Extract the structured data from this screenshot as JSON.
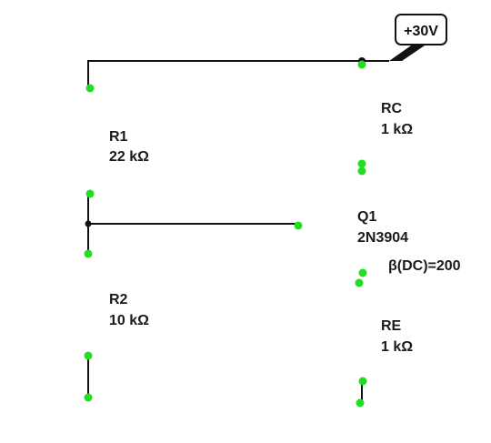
{
  "supply": {
    "label": "+30V"
  },
  "components": {
    "r1": {
      "ref": "R1",
      "value": "22 kΩ"
    },
    "r2": {
      "ref": "R2",
      "value": "10 kΩ"
    },
    "rc": {
      "ref": "RC",
      "value": "1 kΩ"
    },
    "re": {
      "ref": "RE",
      "value": "1 kΩ"
    },
    "q1": {
      "ref": "Q1",
      "part": "2N3904",
      "beta": "β(DC)=200"
    }
  },
  "colors": {
    "wire": "#111111",
    "pin_marker": "#22dd22",
    "text": "#1a1a1a",
    "background": "#ffffff"
  }
}
